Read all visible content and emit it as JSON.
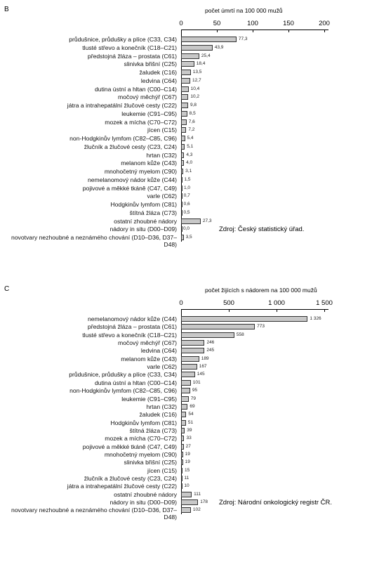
{
  "chart_data": [
    {
      "type": "bar",
      "title": "B",
      "x_label": "počet úmrtí na 100 000 mužů",
      "annotation": "Zdroj: Český statistický úřad.",
      "orientation": "horizontal",
      "color": "#c8c8c8",
      "xlim": [
        0,
        200
      ],
      "xticks": [
        0,
        50,
        100,
        150,
        200
      ],
      "categories": [
        "průdušnice, průdušky a plíce (C33, C34)",
        "tlusté střevo a konečník (C18–C21)",
        "předstojná žláza – prostata (C61)",
        "slinivka břišní (C25)",
        "žaludek (C16)",
        "ledvina (C64)",
        "dutina ústní a hltan (C00–C14)",
        "močový měchýř (C67)",
        "játra a intrahepatální žlučové cesty (C22)",
        "leukemie (C91–C95)",
        "mozek a mícha (C70–C72)",
        "jícen (C15)",
        "non-Hodgkinův lymfom (C82–C85, C96)",
        "žlučník a žlučové cesty (C23, C24)",
        "hrtan (C32)",
        "melanom kůže (C43)",
        "mnohočetný myelom (C90)",
        "nemelanomový nádor kůže (C44)",
        "pojivové a měkké tkáně (C47, C49)",
        "varle (C62)",
        "Hodgkinův lymfom (C81)",
        "štítná žláza (C73)",
        "ostatní zhoubné nádory",
        "nádory in situ (D00–D09)",
        "novotvary nezhoubné a neznámého chování (D10–D36, D37–D48)"
      ],
      "values": [
        77.3,
        43.9,
        25.4,
        18.4,
        13.5,
        12.7,
        10.4,
        10.2,
        9.8,
        8.5,
        7.6,
        7.2,
        5.4,
        5.1,
        4.3,
        4.0,
        3.1,
        1.5,
        1.0,
        0.7,
        0.6,
        0.5,
        27.3,
        0.0,
        3.5
      ],
      "value_labels": [
        "77,3",
        "43,9",
        "25,4",
        "18,4",
        "13,5",
        "12,7",
        "10,4",
        "10,2",
        "9,8",
        "8,5",
        "7,6",
        "7,2",
        "5,4",
        "5,1",
        "4,3",
        "4,0",
        "3,1",
        "1,5",
        "1,0",
        "0,7",
        "0,6",
        "0,5",
        "27,3",
        "0,0",
        "3,5"
      ]
    },
    {
      "type": "bar",
      "title": "C",
      "x_label": "počet žijících s nádorem na 100 000 mužů",
      "annotation": "Zdroj: Národní onkologický registr ČR.",
      "orientation": "horizontal",
      "color": "#c8c8c8",
      "xlim": [
        0,
        1500
      ],
      "xticks": [
        0,
        500,
        {
          "value": 1000,
          "label": "1 000"
        },
        {
          "value": 1500,
          "label": "1 500"
        }
      ],
      "categories": [
        "nemelanomový nádor kůže (C44)",
        "předstojná žláza – prostata (C61)",
        "tlusté střevo a konečník (C18–C21)",
        "močový měchýř (C67)",
        "ledvina (C64)",
        "melanom kůže (C43)",
        "varle (C62)",
        "průdušnice, průdušky a plíce (C33, C34)",
        "dutina ústní a hltan (C00–C14)",
        "non-Hodgkinův lymfom (C82–C85, C96)",
        "leukemie (C91–C95)",
        "hrtan (C32)",
        "žaludek (C16)",
        "Hodgkinův lymfom (C81)",
        "štítná žláza (C73)",
        "mozek a mícha (C70–C72)",
        "pojivové a měkké tkáně (C47, C49)",
        "mnohočetný myelom (C90)",
        "slinivka břišní (C25)",
        "jícen (C15)",
        "žlučník a žlučové cesty (C23, C24)",
        "játra a intrahepatální žlučové cesty (C22)",
        "ostatní zhoubné nádory",
        "nádory in situ (D00–D09)",
        "novotvary nezhoubné a neznámého chování (D10–D36, D37–D48)"
      ],
      "values": [
        1326,
        773,
        558,
        246,
        245,
        189,
        167,
        145,
        101,
        95,
        79,
        69,
        54,
        51,
        39,
        33,
        27,
        19,
        19,
        15,
        11,
        10,
        111,
        178,
        102
      ],
      "value_labels": [
        "1 326",
        "773",
        "558",
        "246",
        "245",
        "189",
        "167",
        "145",
        "101",
        "95",
        "79",
        "69",
        "54",
        "51",
        "39",
        "33",
        "27",
        "19",
        "19",
        "15",
        "11",
        "10",
        "111",
        "178",
        "102"
      ]
    }
  ]
}
